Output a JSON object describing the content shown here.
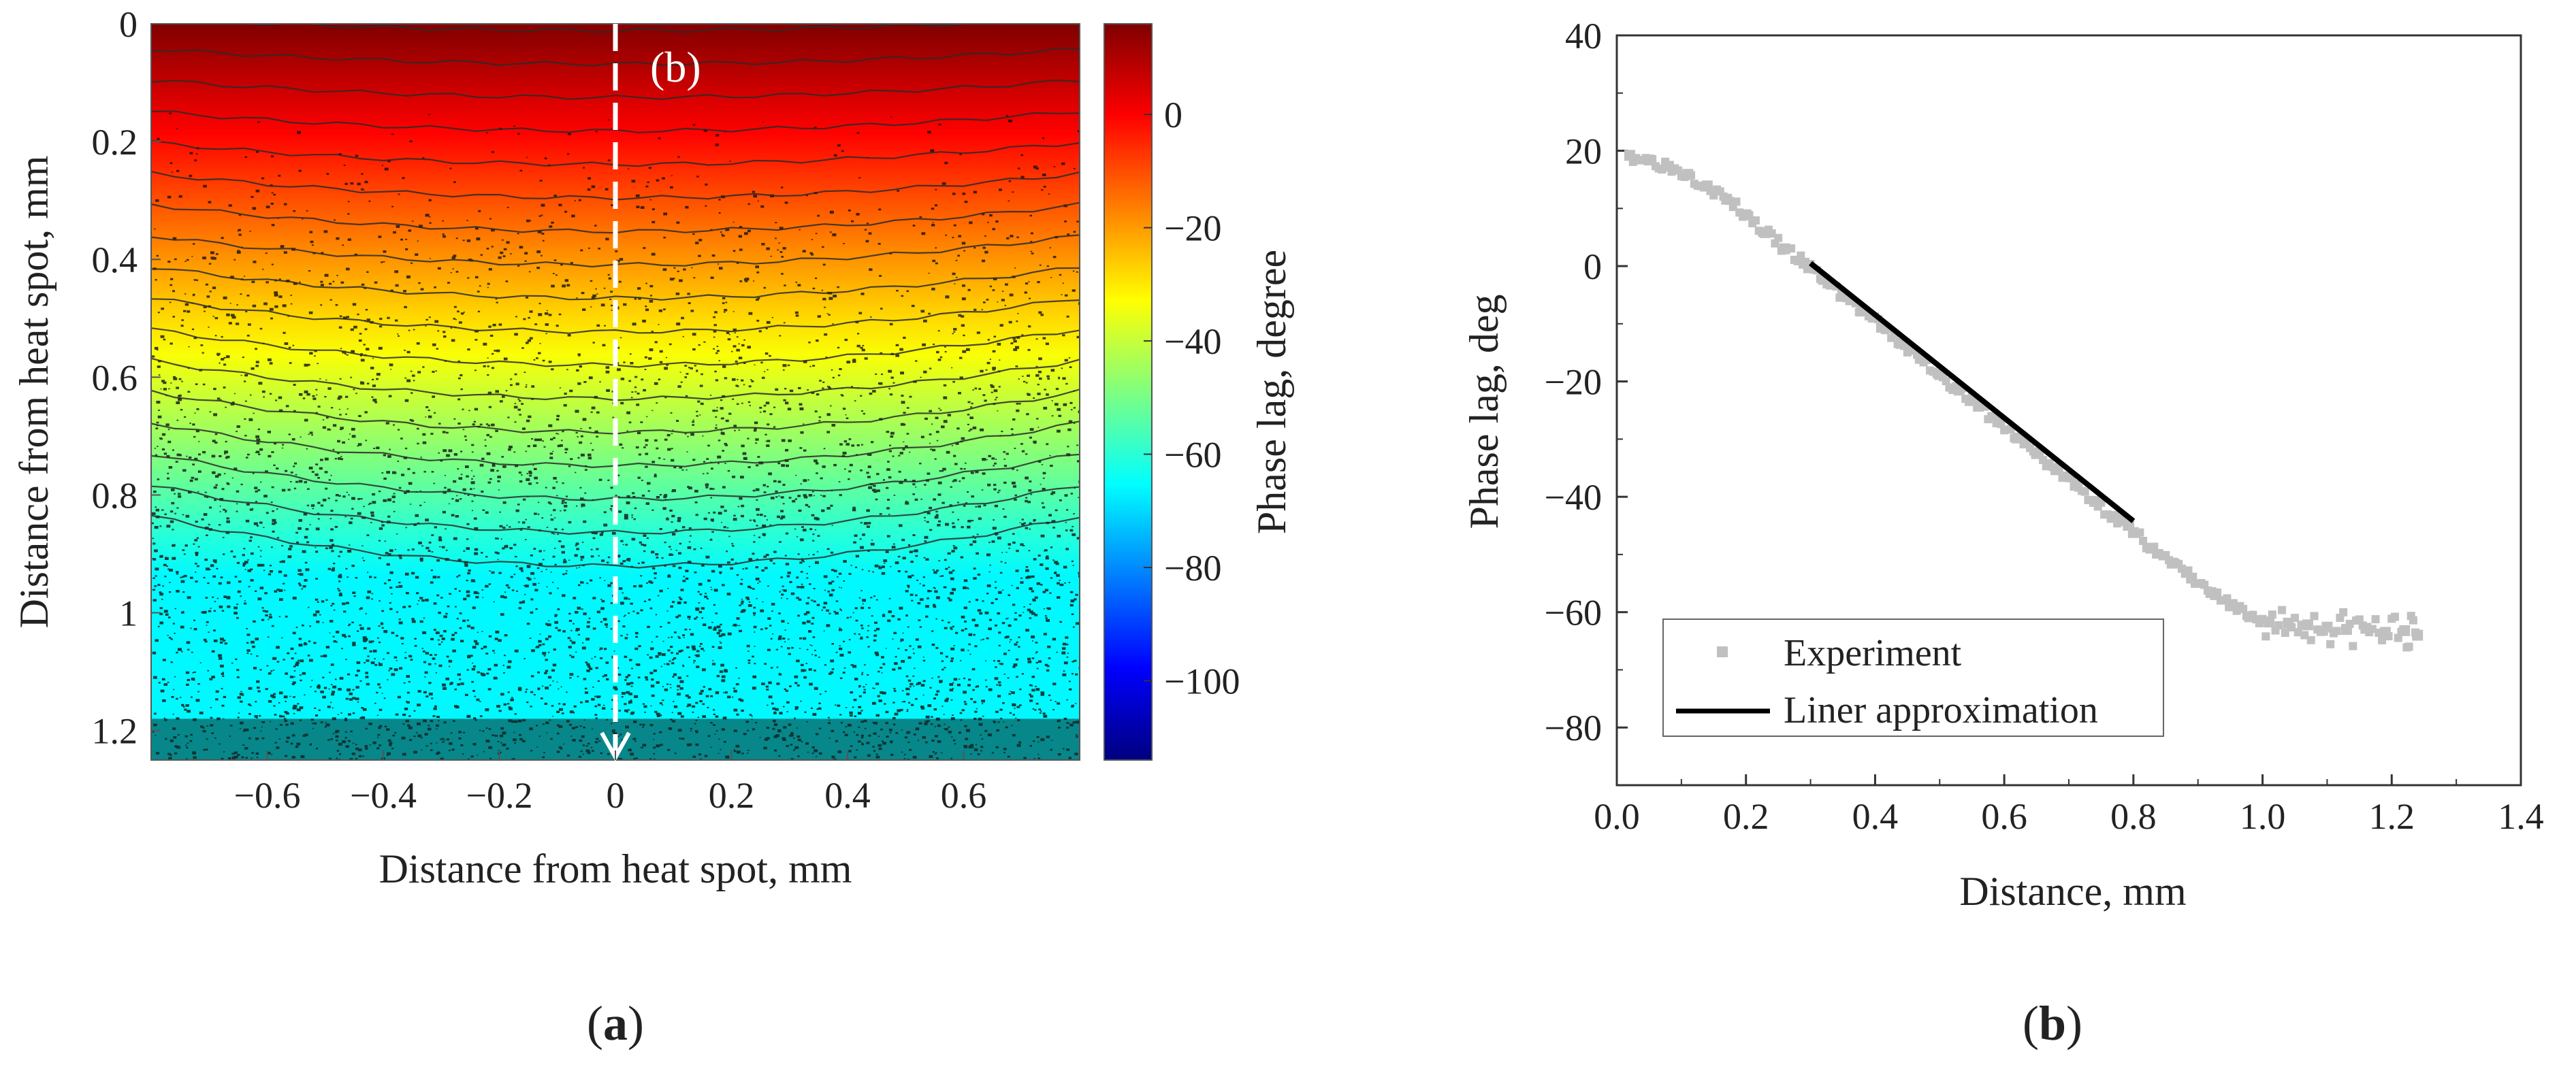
{
  "chart_data": [
    {
      "type": "heatmap",
      "panel_label": "a",
      "xlabel": "Distance from heat spot, mm",
      "ylabel": "Distance from heat spot, mm",
      "colorbar_label": "Phase lag, degree",
      "xlim": [
        -0.8,
        0.8
      ],
      "ylim": [
        0,
        1.25
      ],
      "y_inverted": true,
      "x_ticks": [
        -0.6,
        -0.4,
        -0.2,
        0,
        0.2,
        0.4,
        0.6
      ],
      "x_tick_labels": [
        "−0.6",
        "−0.4",
        "−0.2",
        "0",
        "0.2",
        "0.4",
        "0.6"
      ],
      "y_ticks": [
        0,
        0.2,
        0.4,
        0.6,
        0.8,
        1,
        1.2
      ],
      "y_tick_labels": [
        "0",
        "0.2",
        "0.4",
        "0.6",
        "0.8",
        "1",
        "1.2"
      ],
      "colorbar_range": [
        -114,
        16
      ],
      "colorbar_ticks": [
        0,
        -20,
        -40,
        -60,
        -80,
        -100
      ],
      "colorbar_tick_labels": [
        "0",
        "−20",
        "−40",
        "−60",
        "−80",
        "−100"
      ],
      "contour_levels_deg": [
        15,
        10,
        5,
        0,
        -5,
        -10,
        -15,
        -20,
        -25,
        -30,
        -35,
        -40,
        -45,
        -50,
        -55,
        -60,
        -65
      ],
      "center_phase_deg": 16,
      "phase_gradient_deg_per_mm": -88,
      "colormap": [
        "#00007f",
        "#0000ff",
        "#007fff",
        "#00ffff",
        "#7fff7f",
        "#ffff00",
        "#ff7f00",
        "#ff0000",
        "#7f0000"
      ],
      "arrow": {
        "x": 0,
        "from_y": 0,
        "to_y": 1.25,
        "label": "(b)",
        "color": "#ffffff"
      },
      "noise_region_note": "dense speckle noise below ~0.8 mm"
    },
    {
      "type": "scatter",
      "panel_label": "b",
      "xlabel": "Distance, mm",
      "ylabel": "Phase lag, deg",
      "xlim": [
        0,
        1.4
      ],
      "ylim": [
        -90,
        40
      ],
      "x_ticks": [
        0.0,
        0.2,
        0.4,
        0.6,
        0.8,
        1.0,
        1.2,
        1.4
      ],
      "x_tick_labels": [
        "0.0",
        "0.2",
        "0.4",
        "0.6",
        "0.8",
        "1.0",
        "1.2",
        "1.4"
      ],
      "y_ticks": [
        40,
        20,
        0,
        -20,
        -40,
        -60,
        -80
      ],
      "y_tick_labels": [
        "40",
        "20",
        "0",
        "−20",
        "−40",
        "−60",
        "−80"
      ],
      "series": [
        {
          "name": "Experiment",
          "kind": "scatter",
          "color": "#c0c0c0",
          "x": [
            0.02,
            0.05,
            0.08,
            0.11,
            0.14,
            0.17,
            0.2,
            0.23,
            0.26,
            0.29,
            0.32,
            0.35,
            0.38,
            0.41,
            0.44,
            0.47,
            0.5,
            0.53,
            0.56,
            0.59,
            0.62,
            0.65,
            0.68,
            0.71,
            0.74,
            0.77,
            0.8,
            0.83,
            0.86,
            0.89,
            0.92,
            0.95,
            0.98,
            1.01,
            1.04,
            1.07,
            1.1,
            1.13,
            1.16,
            1.19,
            1.22,
            1.24
          ],
          "y": [
            19.2,
            18.4,
            17.3,
            15.9,
            13.9,
            11.6,
            8.9,
            5.8,
            3.0,
            0.5,
            -2.3,
            -5.1,
            -7.8,
            -10.6,
            -13.4,
            -16.0,
            -18.8,
            -21.5,
            -24.3,
            -27.0,
            -29.8,
            -32.5,
            -35.3,
            -38.0,
            -40.8,
            -43.4,
            -46.2,
            -48.9,
            -51.5,
            -54.1,
            -56.6,
            -58.9,
            -60.8,
            -61.7,
            -61.9,
            -62.2,
            -62.6,
            -63.0,
            -62.8,
            -63.5,
            -63.2,
            -64.0
          ]
        },
        {
          "name": "Liner approximation",
          "kind": "line",
          "color": "#000000",
          "x": [
            0.3,
            0.8
          ],
          "y": [
            0.5,
            -44.2
          ]
        }
      ],
      "legend_position": "bottom-left"
    }
  ]
}
